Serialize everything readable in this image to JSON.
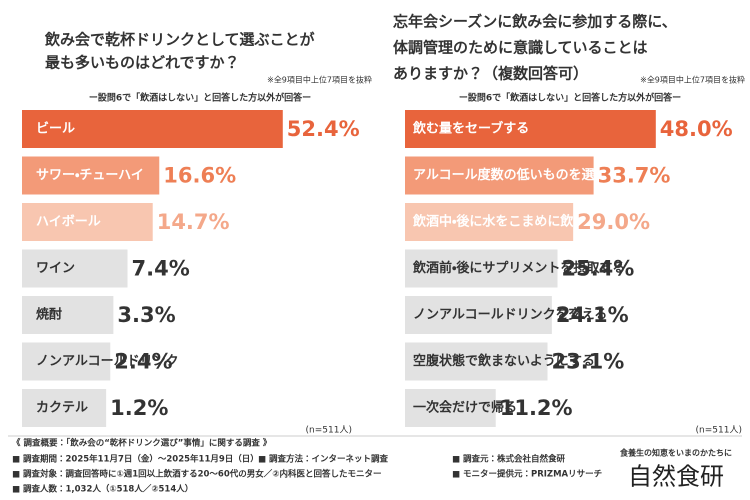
{
  "chart_data": [
    {
      "type": "bar",
      "orientation": "horizontal",
      "title": [
        "飲み会で乾杯ドリンクとして選ぶことが",
        "最も多いものはどれですか？"
      ],
      "note": "※全9項目中上位7項目を抜粋",
      "subtitle": "ー設問6で「飲酒はしない」と回答した方以外が回答ー",
      "categories": [
        "ビール",
        "サワー・チューハイ",
        "ハイボール",
        "ワイン",
        "焼酎",
        "ノンアルコールドリンク",
        "カクテル"
      ],
      "values": [
        52.4,
        16.6,
        14.7,
        7.4,
        3.3,
        2.4,
        1.2
      ],
      "value_labels": [
        "52.4%",
        "16.6%",
        "14.7%",
        "7.4%",
        "3.3%",
        "2.4%",
        "1.2%"
      ],
      "colors": [
        "#e8643c",
        "#f39a78",
        "#f8c6b0",
        "#e2e2e2",
        "#e2e2e2",
        "#e2e2e2",
        "#e2e2e2"
      ],
      "category_colors": [
        "#ffffff",
        "#ffffff",
        "#ffffff",
        "#333333",
        "#333333",
        "#333333",
        "#333333"
      ],
      "label_colors": [
        "#e8643c",
        "#ee7f55",
        "#f4a88a",
        "#333333",
        "#333333",
        "#333333",
        "#333333"
      ],
      "sample": "(n=511人)"
    },
    {
      "type": "bar",
      "orientation": "horizontal",
      "title": [
        "忘年会シーズンに飲み会に参加する際に、",
        "体調管理のために意識していることは",
        "ありますか？（複数回答可）"
      ],
      "note": "※全9項目中上位7項目を抜粋",
      "subtitle": "ー設問6で「飲酒はしない」と回答した方以外が回答ー",
      "categories": [
        "飲む量をセーブする",
        "アルコール度数の低いものを選ぶ",
        "飲酒中・後に水をこまめに飲む",
        "飲酒前・後にサプリメントを摂取する",
        "ノンアルコールドリンクを交える",
        "空腹状態で飲まないようにする",
        "一次会だけで帰る"
      ],
      "values": [
        48.0,
        33.7,
        29.0,
        25.4,
        24.1,
        23.1,
        11.2
      ],
      "value_labels": [
        "48.0%",
        "33.7%",
        "29.0%",
        "25.4%",
        "24.1%",
        "23.1%",
        "11.2%"
      ],
      "colors": [
        "#e8643c",
        "#f39a78",
        "#f8c6b0",
        "#e2e2e2",
        "#e2e2e2",
        "#e2e2e2",
        "#e2e2e2"
      ],
      "category_colors": [
        "#ffffff",
        "#ffffff",
        "#ffffff",
        "#333333",
        "#333333",
        "#333333",
        "#333333"
      ],
      "label_colors": [
        "#e8643c",
        "#ee7f55",
        "#f4a88a",
        "#333333",
        "#333333",
        "#333333",
        "#333333"
      ],
      "sample": "(n=511人)"
    }
  ],
  "footer": {
    "heading": "《 調査概要：「飲み会の“乾杯ドリンク選び”事情」に関する調査 》",
    "rows": [
      [
        "■ 調査期間：2025年11月7日（金）～2025年11月9日（日）",
        "■ 調査方法：インターネット調査",
        "■ 調査元：株式会社自然食研"
      ],
      [
        "■ 調査対象：調査回答時に①週1回以上飲酒する20～60代の男女／②内科医と回答したモニター",
        "■ モニター提供元：PRIZMAリサーチ"
      ],
      [
        "■ 調査人数：1,032人（①518人／②514人）"
      ]
    ],
    "tagline": "食養生の知恵をいまのかたちに",
    "logo": "自然食研"
  }
}
